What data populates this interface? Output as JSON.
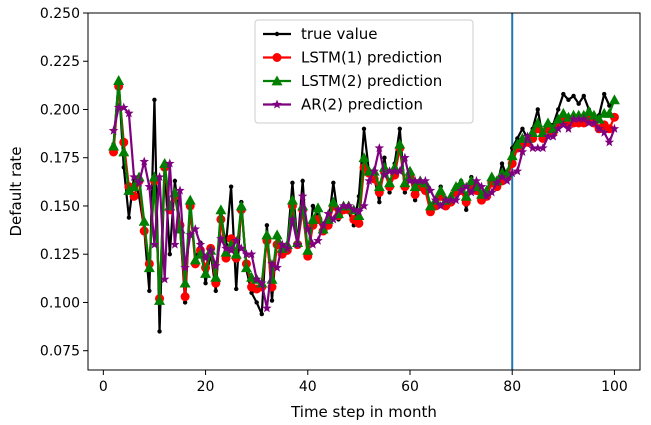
{
  "chart_data": {
    "type": "line",
    "xlabel": "Time step in month",
    "ylabel": "Default rate",
    "xlim": [
      -3,
      105
    ],
    "ylim": [
      0.065,
      0.25
    ],
    "xticks": [
      0,
      20,
      40,
      60,
      80,
      100
    ],
    "yticks": [
      0.075,
      0.1,
      0.125,
      0.15,
      0.175,
      0.2,
      0.225,
      0.25
    ],
    "ytick_labels": [
      "0.075",
      "0.100",
      "0.125",
      "0.150",
      "0.175",
      "0.200",
      "0.225",
      "0.250"
    ],
    "vline": {
      "x": 80,
      "color": "#1f77b4"
    },
    "legend_position": "top-center",
    "grid": false,
    "x": [
      2,
      3,
      4,
      5,
      6,
      7,
      8,
      9,
      10,
      11,
      12,
      13,
      14,
      15,
      16,
      17,
      18,
      19,
      20,
      21,
      22,
      23,
      24,
      25,
      26,
      27,
      28,
      29,
      30,
      31,
      32,
      33,
      34,
      35,
      36,
      37,
      38,
      39,
      40,
      41,
      42,
      43,
      44,
      45,
      46,
      47,
      48,
      49,
      50,
      51,
      52,
      53,
      54,
      55,
      56,
      57,
      58,
      59,
      60,
      61,
      62,
      63,
      64,
      65,
      66,
      67,
      68,
      69,
      70,
      71,
      72,
      73,
      74,
      75,
      76,
      77,
      78,
      79,
      80,
      81,
      82,
      83,
      84,
      85,
      86,
      87,
      88,
      89,
      90,
      91,
      92,
      93,
      94,
      95,
      96,
      97,
      98,
      99,
      100
    ],
    "series": [
      {
        "name": "true value",
        "color": "#000000",
        "marker": "dot",
        "values": [
          0.182,
          0.215,
          0.17,
          0.144,
          0.165,
          0.155,
          0.138,
          0.106,
          0.205,
          0.085,
          0.17,
          0.125,
          0.163,
          0.14,
          0.1,
          0.15,
          0.122,
          0.131,
          0.11,
          0.126,
          0.106,
          0.145,
          0.13,
          0.16,
          0.107,
          0.152,
          0.117,
          0.105,
          0.1,
          0.094,
          0.14,
          0.101,
          0.135,
          0.129,
          0.13,
          0.162,
          0.13,
          0.163,
          0.123,
          0.15,
          0.145,
          0.139,
          0.14,
          0.162,
          0.143,
          0.15,
          0.147,
          0.14,
          0.155,
          0.19,
          0.167,
          0.165,
          0.152,
          0.175,
          0.157,
          0.172,
          0.19,
          0.157,
          0.167,
          0.153,
          0.162,
          0.16,
          0.15,
          0.153,
          0.16,
          0.15,
          0.153,
          0.16,
          0.163,
          0.148,
          0.165,
          0.16,
          0.152,
          0.157,
          0.165,
          0.16,
          0.172,
          0.165,
          0.18,
          0.185,
          0.19,
          0.185,
          0.19,
          0.2,
          0.185,
          0.193,
          0.192,
          0.2,
          0.208,
          0.205,
          0.207,
          0.203,
          0.207,
          0.2,
          0.195,
          0.197,
          0.208,
          0.202,
          0.205
        ]
      },
      {
        "name": "LSTM(1) prediction",
        "color": "#ff0000",
        "marker": "circle",
        "values": [
          0.178,
          0.212,
          0.183,
          0.16,
          0.155,
          0.163,
          0.137,
          0.12,
          0.163,
          0.102,
          0.17,
          0.148,
          0.155,
          0.14,
          0.103,
          0.15,
          0.12,
          0.127,
          0.118,
          0.128,
          0.11,
          0.143,
          0.123,
          0.133,
          0.123,
          0.148,
          0.12,
          0.108,
          0.107,
          0.108,
          0.132,
          0.108,
          0.13,
          0.125,
          0.127,
          0.15,
          0.13,
          0.148,
          0.124,
          0.14,
          0.143,
          0.137,
          0.14,
          0.15,
          0.145,
          0.148,
          0.148,
          0.143,
          0.141,
          0.17,
          0.167,
          0.164,
          0.157,
          0.168,
          0.16,
          0.166,
          0.18,
          0.16,
          0.165,
          0.156,
          0.16,
          0.158,
          0.147,
          0.15,
          0.155,
          0.15,
          0.152,
          0.157,
          0.158,
          0.152,
          0.16,
          0.158,
          0.153,
          0.155,
          0.162,
          0.16,
          0.163,
          0.165,
          0.172,
          0.18,
          0.182,
          0.183,
          0.185,
          0.19,
          0.185,
          0.19,
          0.188,
          0.192,
          0.195,
          0.193,
          0.193,
          0.193,
          0.193,
          0.195,
          0.193,
          0.19,
          0.192,
          0.19,
          0.196
        ]
      },
      {
        "name": "LSTM(2) prediction",
        "color": "#007f00",
        "marker": "triangle",
        "values": [
          0.181,
          0.215,
          0.178,
          0.158,
          0.16,
          0.165,
          0.142,
          0.118,
          0.165,
          0.101,
          0.172,
          0.15,
          0.157,
          0.138,
          0.11,
          0.153,
          0.122,
          0.125,
          0.115,
          0.127,
          0.113,
          0.148,
          0.126,
          0.13,
          0.125,
          0.15,
          0.118,
          0.113,
          0.112,
          0.11,
          0.135,
          0.112,
          0.135,
          0.128,
          0.13,
          0.153,
          0.131,
          0.15,
          0.127,
          0.143,
          0.149,
          0.138,
          0.143,
          0.152,
          0.146,
          0.15,
          0.15,
          0.148,
          0.145,
          0.175,
          0.168,
          0.168,
          0.16,
          0.17,
          0.162,
          0.17,
          0.182,
          0.162,
          0.168,
          0.16,
          0.163,
          0.162,
          0.15,
          0.153,
          0.158,
          0.153,
          0.155,
          0.16,
          0.162,
          0.155,
          0.163,
          0.16,
          0.156,
          0.158,
          0.165,
          0.163,
          0.167,
          0.167,
          0.176,
          0.182,
          0.185,
          0.185,
          0.188,
          0.193,
          0.188,
          0.193,
          0.19,
          0.195,
          0.198,
          0.196,
          0.197,
          0.197,
          0.197,
          0.199,
          0.197,
          0.195,
          0.198,
          0.198,
          0.205
        ]
      },
      {
        "name": "AR(2) prediction",
        "color": "#7f007f",
        "marker": "star",
        "values": [
          0.189,
          0.201,
          0.201,
          0.198,
          0.165,
          0.162,
          0.173,
          0.16,
          0.13,
          0.165,
          0.112,
          0.172,
          0.13,
          0.158,
          0.118,
          0.135,
          0.138,
          0.13,
          0.123,
          0.127,
          0.119,
          0.133,
          0.128,
          0.127,
          0.132,
          0.128,
          0.125,
          0.125,
          0.112,
          0.11,
          0.097,
          0.12,
          0.118,
          0.13,
          0.128,
          0.143,
          0.13,
          0.155,
          0.138,
          0.13,
          0.132,
          0.14,
          0.146,
          0.143,
          0.148,
          0.15,
          0.15,
          0.148,
          0.147,
          0.15,
          0.163,
          0.168,
          0.18,
          0.166,
          0.168,
          0.168,
          0.168,
          0.175,
          0.163,
          0.163,
          0.163,
          0.163,
          0.158,
          0.153,
          0.15,
          0.153,
          0.153,
          0.153,
          0.158,
          0.16,
          0.157,
          0.163,
          0.16,
          0.155,
          0.157,
          0.162,
          0.165,
          0.163,
          0.167,
          0.168,
          0.178,
          0.186,
          0.18,
          0.18,
          0.18,
          0.186,
          0.186,
          0.19,
          0.192,
          0.19,
          0.195,
          0.195,
          0.195,
          0.193,
          0.193,
          0.19,
          0.188,
          0.183,
          0.19
        ]
      }
    ]
  }
}
